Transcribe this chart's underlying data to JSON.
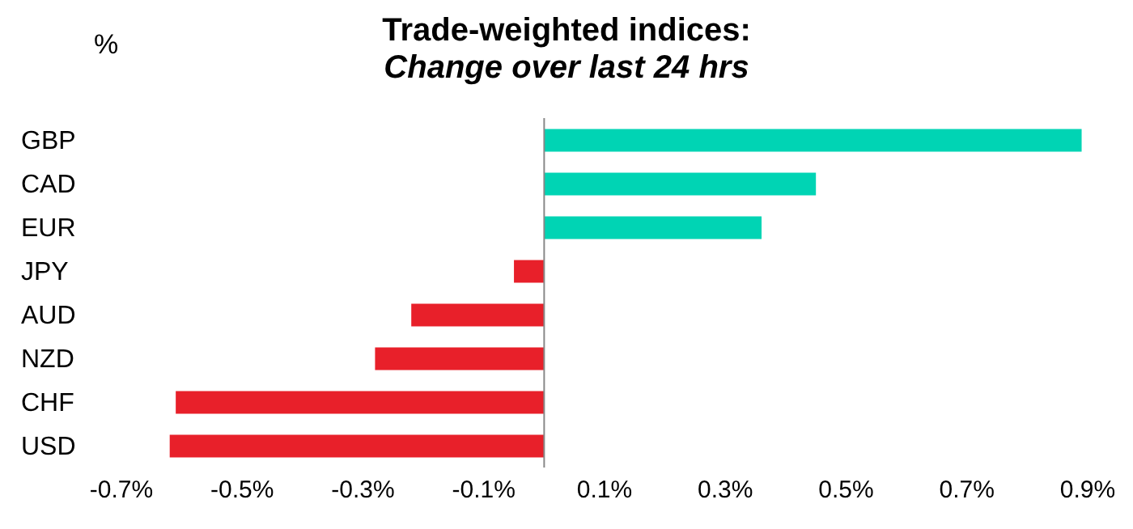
{
  "chart_data": {
    "type": "bar",
    "orientation": "horizontal",
    "title": "Trade-weighted indices:",
    "subtitle": "Change over last 24 hrs",
    "ylabel": "%",
    "categories": [
      "GBP",
      "CAD",
      "EUR",
      "JPY",
      "AUD",
      "NZD",
      "CHF",
      "USD"
    ],
    "values": [
      0.89,
      0.45,
      0.36,
      -0.05,
      -0.22,
      -0.28,
      -0.61,
      -0.62
    ],
    "colors": [
      "#00d4b4",
      "#00d4b4",
      "#00d4b4",
      "#e8202a",
      "#e8202a",
      "#e8202a",
      "#e8202a",
      "#e8202a"
    ],
    "xlim": [
      -0.7,
      0.9
    ],
    "xticks": [
      {
        "value": -0.7,
        "label": "-0.7%"
      },
      {
        "value": -0.5,
        "label": "-0.5%"
      },
      {
        "value": -0.3,
        "label": "-0.3%"
      },
      {
        "value": -0.1,
        "label": "-0.1%"
      },
      {
        "value": 0.1,
        "label": "0.1%"
      },
      {
        "value": 0.3,
        "label": "0.3%"
      },
      {
        "value": 0.5,
        "label": "0.5%"
      },
      {
        "value": 0.7,
        "label": "0.7%"
      },
      {
        "value": 0.9,
        "label": "0.9%"
      }
    ],
    "grid": false
  }
}
